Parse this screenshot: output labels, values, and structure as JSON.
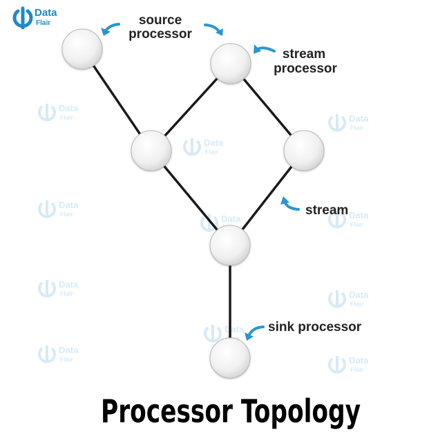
{
  "brand": {
    "name": "Data",
    "name_line2": "Flair",
    "color": "#1e88c8"
  },
  "labels": {
    "source_processor_line1": "source",
    "source_processor_line2": "processor",
    "stream_processor_line1": "stream",
    "stream_processor_line2": "processor",
    "stream": "stream",
    "sink_processor": "sink processor"
  },
  "title": "Processor Topology",
  "colors": {
    "edge": "#1a1a1a",
    "arrow": "#2a96cf",
    "node_fill_light": "#ffffff",
    "node_fill_dark": "#d9d9d9",
    "node_stroke": "#b5b5b5"
  },
  "nodes": [
    {
      "id": "source-processor",
      "role": "source processor"
    },
    {
      "id": "stream-processor-top",
      "role": "stream processor"
    },
    {
      "id": "left-middle-processor",
      "role": "processor"
    },
    {
      "id": "right-middle-processor",
      "role": "processor"
    },
    {
      "id": "merge-processor",
      "role": "processor"
    },
    {
      "id": "sink-processor",
      "role": "sink processor"
    }
  ],
  "edges": [
    {
      "from": "source-processor",
      "to": "left-middle-processor"
    },
    {
      "from": "stream-processor-top",
      "to": "left-middle-processor"
    },
    {
      "from": "stream-processor-top",
      "to": "right-middle-processor"
    },
    {
      "from": "left-middle-processor",
      "to": "merge-processor"
    },
    {
      "from": "right-middle-processor",
      "to": "merge-processor"
    },
    {
      "from": "merge-processor",
      "to": "sink-processor"
    }
  ]
}
